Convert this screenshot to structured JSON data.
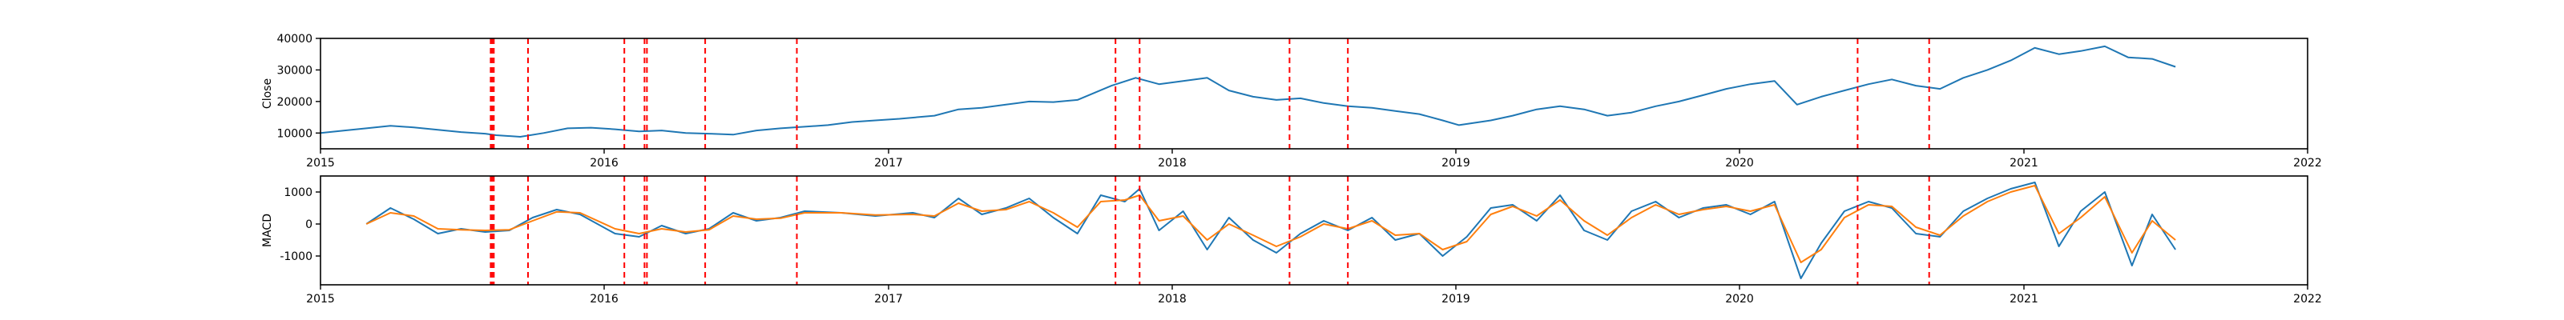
{
  "chart_data": [
    {
      "type": "line",
      "ylabel": "Close",
      "xlim": [
        "2015-01-01",
        "2022-01-01"
      ],
      "ylim": [
        5000,
        40000
      ],
      "x_ticks": [
        "2015",
        "2016",
        "2017",
        "2018",
        "2019",
        "2020",
        "2021",
        "2022"
      ],
      "y_ticks": [
        10000,
        20000,
        30000,
        40000
      ],
      "grid": false,
      "series": [
        {
          "color": "#1f77b4",
          "points": [
            [
              "2015-01-01",
              10000
            ],
            [
              "2015-02-01",
              10800
            ],
            [
              "2015-03-01",
              11500
            ],
            [
              "2015-04-01",
              12300
            ],
            [
              "2015-05-01",
              11800
            ],
            [
              "2015-06-01",
              11000
            ],
            [
              "2015-07-01",
              10300
            ],
            [
              "2015-08-01",
              9800
            ],
            [
              "2015-08-15",
              9300
            ],
            [
              "2015-09-15",
              8800
            ],
            [
              "2015-10-15",
              10000
            ],
            [
              "2015-11-15",
              11500
            ],
            [
              "2015-12-15",
              11700
            ],
            [
              "2016-01-15",
              11200
            ],
            [
              "2016-02-15",
              10500
            ],
            [
              "2016-03-15",
              10800
            ],
            [
              "2016-04-15",
              10000
            ],
            [
              "2016-05-15",
              9800
            ],
            [
              "2016-06-15",
              9500
            ],
            [
              "2016-07-15",
              10800
            ],
            [
              "2016-08-15",
              11500
            ],
            [
              "2016-09-15",
              12000
            ],
            [
              "2016-10-15",
              12500
            ],
            [
              "2016-11-15",
              13500
            ],
            [
              "2016-12-15",
              14000
            ],
            [
              "2017-01-15",
              14500
            ],
            [
              "2017-03-01",
              15500
            ],
            [
              "2017-04-01",
              17500
            ],
            [
              "2017-05-01",
              18000
            ],
            [
              "2017-06-01",
              19000
            ],
            [
              "2017-07-01",
              20000
            ],
            [
              "2017-08-01",
              19800
            ],
            [
              "2017-09-01",
              20500
            ],
            [
              "2017-10-15",
              25000
            ],
            [
              "2017-11-15",
              27500
            ],
            [
              "2017-12-15",
              25500
            ],
            [
              "2018-01-15",
              26500
            ],
            [
              "2018-02-15",
              27500
            ],
            [
              "2018-03-15",
              23500
            ],
            [
              "2018-04-15",
              21500
            ],
            [
              "2018-05-15",
              20500
            ],
            [
              "2018-06-15",
              21000
            ],
            [
              "2018-07-15",
              19500
            ],
            [
              "2018-08-15",
              18500
            ],
            [
              "2018-09-15",
              18000
            ],
            [
              "2018-10-15",
              17000
            ],
            [
              "2018-11-15",
              16000
            ],
            [
              "2018-12-15",
              14000
            ],
            [
              "2019-01-05",
              12500
            ],
            [
              "2019-02-15",
              14000
            ],
            [
              "2019-03-15",
              15500
            ],
            [
              "2019-04-15",
              17500
            ],
            [
              "2019-05-15",
              18500
            ],
            [
              "2019-06-15",
              17500
            ],
            [
              "2019-07-15",
              15500
            ],
            [
              "2019-08-15",
              16500
            ],
            [
              "2019-09-15",
              18500
            ],
            [
              "2019-10-15",
              20000
            ],
            [
              "2019-11-15",
              22000
            ],
            [
              "2019-12-15",
              24000
            ],
            [
              "2020-01-15",
              25500
            ],
            [
              "2020-02-15",
              26500
            ],
            [
              "2020-03-15",
              19000
            ],
            [
              "2020-04-15",
              21500
            ],
            [
              "2020-05-15",
              23500
            ],
            [
              "2020-06-15",
              25500
            ],
            [
              "2020-07-15",
              27000
            ],
            [
              "2020-08-15",
              25000
            ],
            [
              "2020-09-15",
              24000
            ],
            [
              "2020-10-15",
              27500
            ],
            [
              "2020-11-15",
              30000
            ],
            [
              "2020-12-15",
              33000
            ],
            [
              "2021-01-15",
              37000
            ],
            [
              "2021-02-15",
              35000
            ],
            [
              "2021-03-15",
              36000
            ],
            [
              "2021-04-15",
              37500
            ],
            [
              "2021-05-15",
              34000
            ],
            [
              "2021-06-15",
              33500
            ],
            [
              "2021-07-15",
              31000
            ]
          ]
        }
      ],
      "annotations": {
        "vlines_color": "#ff0000",
        "vlines_style": "dashed",
        "vlines_x": [
          "2015-08-08",
          "2015-08-10",
          "2015-08-12",
          "2015-09-25",
          "2016-01-27",
          "2016-02-22",
          "2016-02-25",
          "2016-05-10",
          "2016-09-05",
          "2017-10-20",
          "2017-11-20",
          "2018-06-01",
          "2018-08-15",
          "2020-06-01",
          "2020-09-01"
        ]
      }
    },
    {
      "type": "line",
      "ylabel": "MACD",
      "xlim": [
        "2015-01-01",
        "2022-01-01"
      ],
      "ylim": [
        -1900,
        1500
      ],
      "x_ticks": [
        "2015",
        "2016",
        "2017",
        "2018",
        "2019",
        "2020",
        "2021",
        "2022"
      ],
      "y_ticks": [
        -1000,
        0,
        1000
      ],
      "grid": false,
      "series": [
        {
          "color": "#1f77b4",
          "points": [
            [
              "2015-03-01",
              0
            ],
            [
              "2015-04-01",
              500
            ],
            [
              "2015-05-01",
              150
            ],
            [
              "2015-06-01",
              -300
            ],
            [
              "2015-07-01",
              -150
            ],
            [
              "2015-08-01",
              -250
            ],
            [
              "2015-09-01",
              -200
            ],
            [
              "2015-10-01",
              200
            ],
            [
              "2015-11-01",
              450
            ],
            [
              "2015-12-01",
              300
            ],
            [
              "2016-01-15",
              -300
            ],
            [
              "2016-02-15",
              -400
            ],
            [
              "2016-03-15",
              -50
            ],
            [
              "2016-04-15",
              -300
            ],
            [
              "2016-05-15",
              -150
            ],
            [
              "2016-06-15",
              350
            ],
            [
              "2016-07-15",
              100
            ],
            [
              "2016-08-15",
              200
            ],
            [
              "2016-09-15",
              400
            ],
            [
              "2016-11-01",
              350
            ],
            [
              "2016-12-15",
              250
            ],
            [
              "2017-02-01",
              350
            ],
            [
              "2017-03-01",
              200
            ],
            [
              "2017-04-01",
              800
            ],
            [
              "2017-05-01",
              300
            ],
            [
              "2017-06-01",
              500
            ],
            [
              "2017-07-01",
              800
            ],
            [
              "2017-08-01",
              200
            ],
            [
              "2017-09-01",
              -300
            ],
            [
              "2017-10-01",
              900
            ],
            [
              "2017-11-01",
              700
            ],
            [
              "2017-11-20",
              1100
            ],
            [
              "2017-12-15",
              -200
            ],
            [
              "2018-01-15",
              400
            ],
            [
              "2018-02-15",
              -800
            ],
            [
              "2018-03-15",
              200
            ],
            [
              "2018-04-15",
              -500
            ],
            [
              "2018-05-15",
              -900
            ],
            [
              "2018-06-15",
              -300
            ],
            [
              "2018-07-15",
              100
            ],
            [
              "2018-08-15",
              -200
            ],
            [
              "2018-09-15",
              200
            ],
            [
              "2018-10-15",
              -500
            ],
            [
              "2018-11-15",
              -300
            ],
            [
              "2018-12-15",
              -1000
            ],
            [
              "2019-01-15",
              -400
            ],
            [
              "2019-02-15",
              500
            ],
            [
              "2019-03-15",
              600
            ],
            [
              "2019-04-15",
              100
            ],
            [
              "2019-05-15",
              900
            ],
            [
              "2019-06-15",
              -200
            ],
            [
              "2019-07-15",
              -500
            ],
            [
              "2019-08-15",
              400
            ],
            [
              "2019-09-15",
              700
            ],
            [
              "2019-10-15",
              200
            ],
            [
              "2019-11-15",
              500
            ],
            [
              "2019-12-15",
              600
            ],
            [
              "2020-01-15",
              300
            ],
            [
              "2020-02-15",
              700
            ],
            [
              "2020-03-20",
              -1700
            ],
            [
              "2020-04-15",
              -600
            ],
            [
              "2020-05-15",
              400
            ],
            [
              "2020-06-15",
              700
            ],
            [
              "2020-07-15",
              500
            ],
            [
              "2020-08-15",
              -300
            ],
            [
              "2020-09-15",
              -400
            ],
            [
              "2020-10-15",
              400
            ],
            [
              "2020-11-15",
              800
            ],
            [
              "2020-12-15",
              1100
            ],
            [
              "2021-01-15",
              1300
            ],
            [
              "2021-02-15",
              -700
            ],
            [
              "2021-03-15",
              400
            ],
            [
              "2021-04-15",
              1000
            ],
            [
              "2021-05-20",
              -1300
            ],
            [
              "2021-06-15",
              300
            ],
            [
              "2021-07-15",
              -800
            ]
          ]
        },
        {
          "color": "#ff7f0e",
          "points": [
            [
              "2015-03-01",
              0
            ],
            [
              "2015-04-01",
              350
            ],
            [
              "2015-05-01",
              250
            ],
            [
              "2015-06-01",
              -150
            ],
            [
              "2015-07-01",
              -180
            ],
            [
              "2015-08-01",
              -200
            ],
            [
              "2015-09-01",
              -180
            ],
            [
              "2015-10-01",
              100
            ],
            [
              "2015-11-01",
              380
            ],
            [
              "2015-12-01",
              350
            ],
            [
              "2016-01-15",
              -150
            ],
            [
              "2016-02-15",
              -300
            ],
            [
              "2016-03-15",
              -150
            ],
            [
              "2016-04-15",
              -250
            ],
            [
              "2016-05-15",
              -180
            ],
            [
              "2016-06-15",
              250
            ],
            [
              "2016-07-15",
              150
            ],
            [
              "2016-08-15",
              180
            ],
            [
              "2016-09-15",
              350
            ],
            [
              "2016-11-01",
              350
            ],
            [
              "2016-12-15",
              280
            ],
            [
              "2017-02-01",
              300
            ],
            [
              "2017-03-01",
              250
            ],
            [
              "2017-04-01",
              650
            ],
            [
              "2017-05-01",
              400
            ],
            [
              "2017-06-01",
              450
            ],
            [
              "2017-07-01",
              700
            ],
            [
              "2017-08-01",
              350
            ],
            [
              "2017-09-01",
              -100
            ],
            [
              "2017-10-01",
              700
            ],
            [
              "2017-11-01",
              750
            ],
            [
              "2017-11-20",
              900
            ],
            [
              "2017-12-15",
              100
            ],
            [
              "2018-01-15",
              250
            ],
            [
              "2018-02-15",
              -500
            ],
            [
              "2018-03-15",
              0
            ],
            [
              "2018-04-15",
              -350
            ],
            [
              "2018-05-15",
              -700
            ],
            [
              "2018-06-15",
              -400
            ],
            [
              "2018-07-15",
              0
            ],
            [
              "2018-08-15",
              -150
            ],
            [
              "2018-09-15",
              100
            ],
            [
              "2018-10-15",
              -350
            ],
            [
              "2018-11-15",
              -300
            ],
            [
              "2018-12-15",
              -800
            ],
            [
              "2019-01-15",
              -550
            ],
            [
              "2019-02-15",
              300
            ],
            [
              "2019-03-15",
              550
            ],
            [
              "2019-04-15",
              250
            ],
            [
              "2019-05-15",
              750
            ],
            [
              "2019-06-15",
              100
            ],
            [
              "2019-07-15",
              -350
            ],
            [
              "2019-08-15",
              200
            ],
            [
              "2019-09-15",
              600
            ],
            [
              "2019-10-15",
              300
            ],
            [
              "2019-11-15",
              450
            ],
            [
              "2019-12-15",
              550
            ],
            [
              "2020-01-15",
              400
            ],
            [
              "2020-02-15",
              600
            ],
            [
              "2020-03-20",
              -1200
            ],
            [
              "2020-04-15",
              -800
            ],
            [
              "2020-05-15",
              200
            ],
            [
              "2020-06-15",
              600
            ],
            [
              "2020-07-15",
              550
            ],
            [
              "2020-08-15",
              -100
            ],
            [
              "2020-09-15",
              -350
            ],
            [
              "2020-10-15",
              250
            ],
            [
              "2020-11-15",
              700
            ],
            [
              "2020-12-15",
              1000
            ],
            [
              "2021-01-15",
              1200
            ],
            [
              "2021-02-15",
              -300
            ],
            [
              "2021-03-15",
              200
            ],
            [
              "2021-04-15",
              850
            ],
            [
              "2021-05-20",
              -900
            ],
            [
              "2021-06-15",
              100
            ],
            [
              "2021-07-15",
              -500
            ]
          ]
        }
      ],
      "annotations": {
        "vlines_color": "#ff0000",
        "vlines_style": "dashed",
        "vlines_x": [
          "2015-08-08",
          "2015-08-10",
          "2015-08-12",
          "2015-09-25",
          "2016-01-27",
          "2016-02-22",
          "2016-02-25",
          "2016-05-10",
          "2016-09-05",
          "2017-10-20",
          "2017-11-20",
          "2018-06-01",
          "2018-08-15",
          "2020-06-01",
          "2020-09-01"
        ]
      }
    }
  ]
}
